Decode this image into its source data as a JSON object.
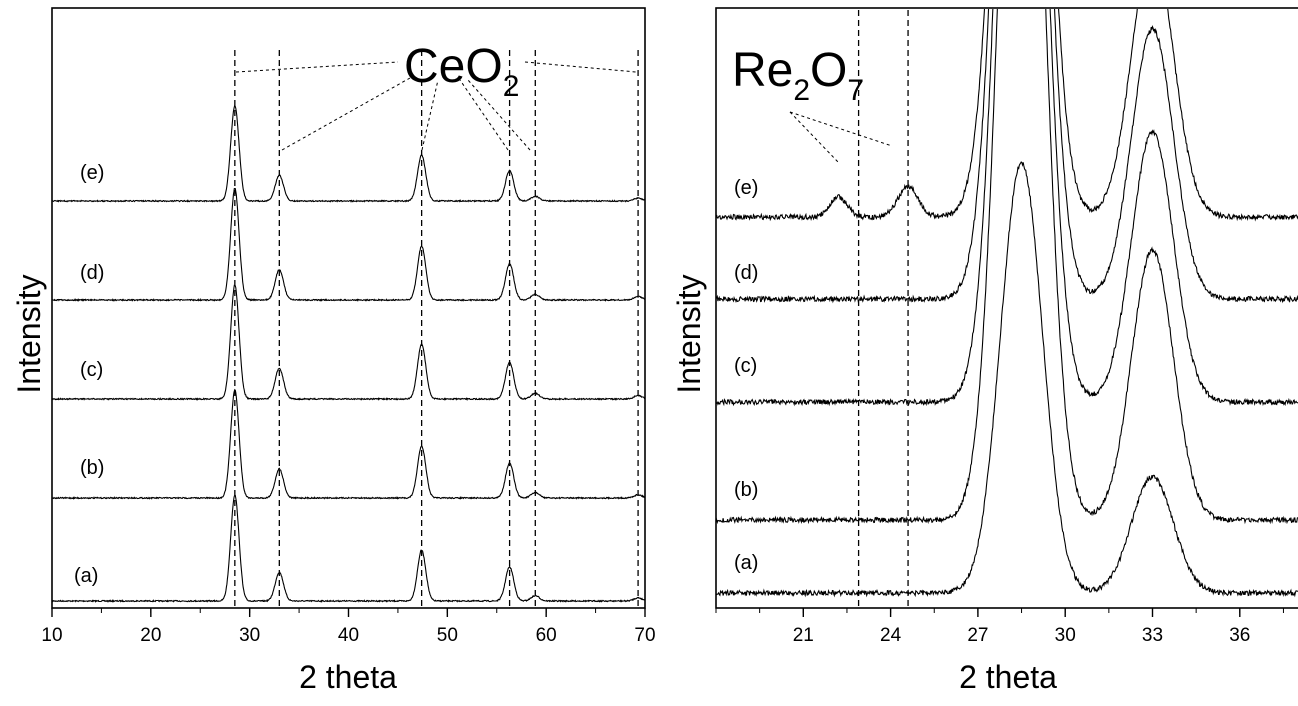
{
  "chart_data": [
    {
      "type": "line",
      "xlabel": "2 theta",
      "ylabel": "Intensity",
      "xlim": [
        10,
        70
      ],
      "xticks": [
        "10",
        "20",
        "30",
        "40",
        "50",
        "60",
        "70"
      ],
      "x_tick_values": [
        10,
        20,
        30,
        40,
        50,
        60,
        70
      ],
      "annotation": {
        "main": "CeO",
        "sub": "2"
      },
      "reference_lines": [
        28.5,
        33.0,
        47.4,
        56.3,
        58.9,
        69.3
      ],
      "peaks": [
        {
          "x": 28.5,
          "height": 1.0
        },
        {
          "x": 33.0,
          "height": 0.27
        },
        {
          "x": 47.4,
          "height": 0.48
        },
        {
          "x": 56.3,
          "height": 0.32
        },
        {
          "x": 58.9,
          "height": 0.05
        },
        {
          "x": 69.3,
          "height": 0.03
        }
      ],
      "series": [
        {
          "name": "(a)"
        },
        {
          "name": "(b)"
        },
        {
          "name": "(c)"
        },
        {
          "name": "(d)"
        },
        {
          "name": "(e)"
        }
      ]
    },
    {
      "type": "line",
      "xlabel": "2 theta",
      "ylabel": "Intensity",
      "xlim": [
        18,
        38
      ],
      "xticks": [
        "21",
        "24",
        "27",
        "30",
        "33",
        "36"
      ],
      "x_tick_values": [
        21,
        24,
        27,
        30,
        33,
        36
      ],
      "annotation": {
        "main": "Re",
        "sub1": "2",
        "mid": "O",
        "sub2": "7"
      },
      "reference_lines": [
        22.9,
        24.6
      ],
      "peaks": [
        {
          "x": 28.5,
          "height": 1.0
        },
        {
          "x": 33.0,
          "height": 0.27
        }
      ],
      "series": [
        {
          "name": "(a)"
        },
        {
          "name": "(b)"
        },
        {
          "name": "(c)"
        },
        {
          "name": "(d)"
        },
        {
          "name": "(e)"
        }
      ]
    }
  ]
}
